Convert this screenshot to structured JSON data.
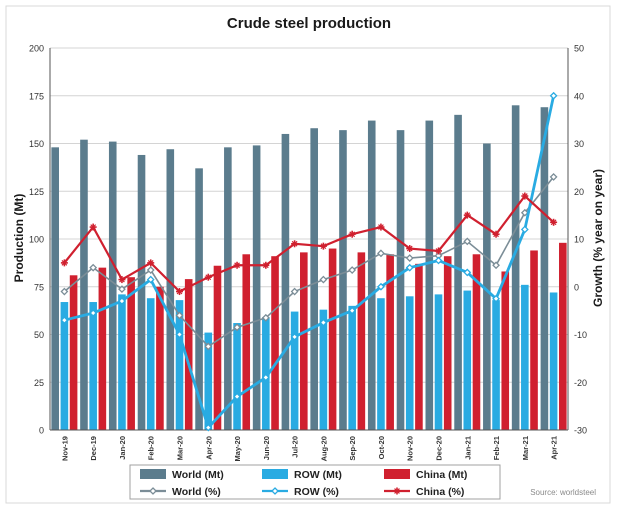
{
  "chart_data": {
    "type": "bar",
    "title": "Crude steel production",
    "ylabel": "Production (Mt)",
    "y2label": "Growth (% year on year)",
    "source": "Source: worldsteel",
    "categories": [
      "Nov-19",
      "Dec-19",
      "Jan-20",
      "Feb-20",
      "Mar-20",
      "Apr-20",
      "May-20",
      "Jun-20",
      "Jul-20",
      "Aug-20",
      "Sep-20",
      "Oct-20",
      "Nov-20",
      "Dec-20",
      "Jan-21",
      "Feb-21",
      "Mar-21",
      "Apr-21"
    ],
    "ylim": [
      0,
      200
    ],
    "yticks": [
      0,
      25,
      50,
      75,
      100,
      125,
      150,
      175,
      200
    ],
    "y2lim": [
      -30,
      50
    ],
    "y2ticks": [
      -30,
      -20,
      -10,
      0,
      10,
      20,
      30,
      40,
      50
    ],
    "grid": true,
    "legend_placement": "bottom",
    "bar_series": [
      {
        "name": "World (Mt)",
        "color": "#5b7c8d",
        "values": [
          148,
          152,
          151,
          144,
          147,
          137,
          148,
          149,
          155,
          158,
          157,
          162,
          157,
          162,
          165,
          150,
          170,
          169
        ]
      },
      {
        "name": "ROW (Mt)",
        "color": "#29abe2",
        "values": [
          67,
          67,
          71,
          69,
          68,
          51,
          56,
          59,
          62,
          63,
          65,
          69,
          70,
          71,
          73,
          68,
          76,
          72
        ]
      },
      {
        "name": "China (Mt)",
        "color": "#d0202f",
        "values": [
          81,
          85,
          80,
          75,
          79,
          86,
          92,
          91,
          93,
          95,
          93,
          92,
          87,
          91,
          92,
          83,
          94,
          98
        ]
      }
    ],
    "line_series": [
      {
        "name": "World (%)",
        "color": "#7b8d97",
        "marker": "diamond",
        "values": [
          -1,
          4,
          -0.5,
          3.5,
          -6,
          -12.5,
          -8.5,
          -6.5,
          -1,
          1.5,
          3.5,
          7,
          6,
          6.5,
          9.5,
          4.5,
          15.5,
          23
        ]
      },
      {
        "name": "ROW (%)",
        "color": "#29abe2",
        "marker": "diamond",
        "values": [
          -7,
          -5.5,
          -3,
          1.5,
          -10,
          -29.5,
          -23,
          -19,
          -10.5,
          -7.5,
          -5,
          0,
          4,
          5.5,
          3,
          -2.5,
          12,
          40
        ]
      },
      {
        "name": "China (%)",
        "color": "#d0202f",
        "marker": "star",
        "values": [
          5,
          12.5,
          1.5,
          5,
          -1,
          2,
          4.5,
          4.5,
          9,
          8.5,
          11,
          12.5,
          8,
          7.5,
          15,
          11,
          19,
          13.5
        ]
      }
    ]
  }
}
